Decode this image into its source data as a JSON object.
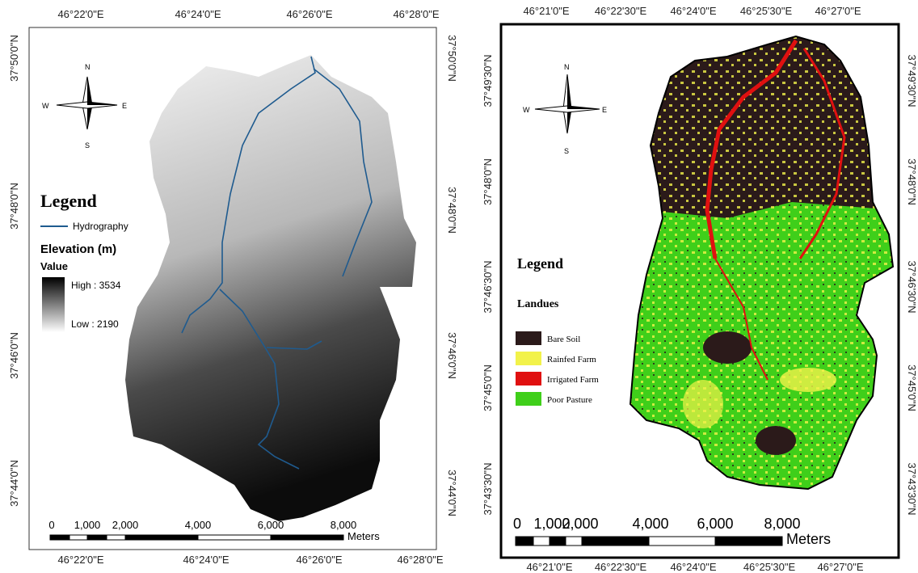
{
  "left_map": {
    "top_labels": [
      "46°22'0\"E",
      "46°24'0\"E",
      "46°26'0\"E",
      "46°28'0\"E"
    ],
    "bottom_labels": [
      "46°22'0\"E",
      "46°24'0\"E",
      "46°26'0\"E",
      "46°28'0\"E"
    ],
    "left_labels": [
      "37°50'0\"N",
      "37°48'0\"N",
      "37°46'0\"N",
      "37°44'0\"N"
    ],
    "right_labels": [
      "37°50'0\"N",
      "37°48'0\"N",
      "37°46'0\"N",
      "37°44'0\"N"
    ],
    "north_arrow": {
      "n": "N",
      "s": "S",
      "e": "E",
      "w": "W"
    },
    "legend": {
      "title": "Legend",
      "hydrography": "Hydrography",
      "elevation_title": "Elevation (m)",
      "value_label": "Value",
      "high": "High : 3534",
      "low": "Low : 2190"
    },
    "scale": {
      "ticks": [
        "0",
        "1,000",
        "2,000",
        "4,000",
        "6,000",
        "8,000"
      ],
      "unit": "Meters"
    }
  },
  "right_map": {
    "top_labels": [
      "46°21'0\"E",
      "46°22'30\"E",
      "46°24'0\"E",
      "46°25'30\"E",
      "46°27'0\"E"
    ],
    "bottom_labels": [
      "46°21'0\"E",
      "46°22'30\"E",
      "46°24'0\"E",
      "46°25'30\"E",
      "46°27'0\"E"
    ],
    "left_labels": [
      "37°49'30\"N",
      "37°48'0\"N",
      "37°46'30\"N",
      "37°45'0\"N",
      "37°43'30\"N"
    ],
    "right_labels": [
      "37°49'30\"N",
      "37°48'0\"N",
      "37°46'30\"N",
      "37°45'0\"N",
      "37°43'30\"N"
    ],
    "north_arrow": {
      "n": "N",
      "s": "S",
      "e": "E",
      "w": "W"
    },
    "legend": {
      "title": "Legend",
      "subtitle": "Landues",
      "items": [
        "Bare Soil",
        "Rainfed Farm",
        "Irrigated Farm",
        "Poor Pasture"
      ]
    },
    "scale": {
      "ticks": [
        "0",
        "1,000",
        "2,000",
        "4,000",
        "6,000",
        "8,000"
      ],
      "unit": "Meters"
    }
  }
}
